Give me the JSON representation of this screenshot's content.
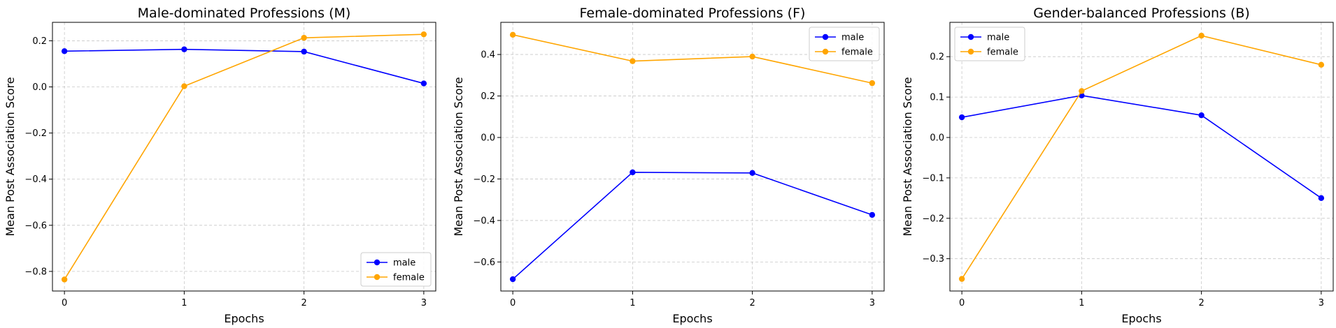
{
  "chart_data": [
    {
      "type": "line",
      "title": "Male-dominated Professions (M)",
      "xlabel": "Epochs",
      "ylabel": "Mean Post Association Score",
      "x": [
        0,
        1,
        2,
        3
      ],
      "xticks": [
        "0",
        "1",
        "2",
        "3"
      ],
      "xlim": [
        -0.1,
        3.1
      ],
      "ylim": [
        -0.885,
        0.28
      ],
      "yticks": [
        -0.8,
        -0.6,
        -0.4,
        -0.2,
        0.0,
        0.2
      ],
      "ytick_labels": [
        "−0.8",
        "−0.6",
        "−0.4",
        "−0.2",
        "0.0",
        "0.2"
      ],
      "grid": true,
      "legend_loc": "lower-right",
      "series": [
        {
          "name": "male",
          "color": "#0000ff",
          "values": [
            0.155,
            0.163,
            0.153,
            0.015
          ]
        },
        {
          "name": "female",
          "color": "#ffa500",
          "values": [
            -0.835,
            0.003,
            0.213,
            0.228
          ]
        }
      ]
    },
    {
      "type": "line",
      "title": "Female-dominated Professions (F)",
      "xlabel": "Epochs",
      "ylabel": "Mean Post Association Score",
      "x": [
        0,
        1,
        2,
        3
      ],
      "xticks": [
        "0",
        "1",
        "2",
        "3"
      ],
      "xlim": [
        -0.1,
        3.1
      ],
      "ylim": [
        -0.74,
        0.555
      ],
      "yticks": [
        -0.6,
        -0.4,
        -0.2,
        0.0,
        0.2,
        0.4
      ],
      "ytick_labels": [
        "−0.6",
        "−0.4",
        "−0.2",
        "0.0",
        "0.2",
        "0.4"
      ],
      "grid": true,
      "legend_loc": "upper-right",
      "series": [
        {
          "name": "male",
          "color": "#0000ff",
          "values": [
            -0.683,
            -0.168,
            -0.171,
            -0.373
          ]
        },
        {
          "name": "female",
          "color": "#ffa500",
          "values": [
            0.495,
            0.368,
            0.39,
            0.262
          ]
        }
      ]
    },
    {
      "type": "line",
      "title": "Gender-balanced Professions (B)",
      "xlabel": "Epochs",
      "ylabel": "Mean Post Association Score",
      "x": [
        0,
        1,
        2,
        3
      ],
      "xticks": [
        "0",
        "1",
        "2",
        "3"
      ],
      "xlim": [
        -0.1,
        3.1
      ],
      "ylim": [
        -0.38,
        0.285
      ],
      "yticks": [
        -0.3,
        -0.2,
        -0.1,
        0.0,
        0.1,
        0.2
      ],
      "ytick_labels": [
        "−0.3",
        "−0.2",
        "−0.1",
        "0.0",
        "0.1",
        "0.2"
      ],
      "grid": true,
      "legend_loc": "upper-left",
      "series": [
        {
          "name": "male",
          "color": "#0000ff",
          "values": [
            0.05,
            0.104,
            0.055,
            -0.15
          ]
        },
        {
          "name": "female",
          "color": "#ffa500",
          "values": [
            -0.35,
            0.115,
            0.252,
            0.18
          ]
        }
      ]
    }
  ]
}
